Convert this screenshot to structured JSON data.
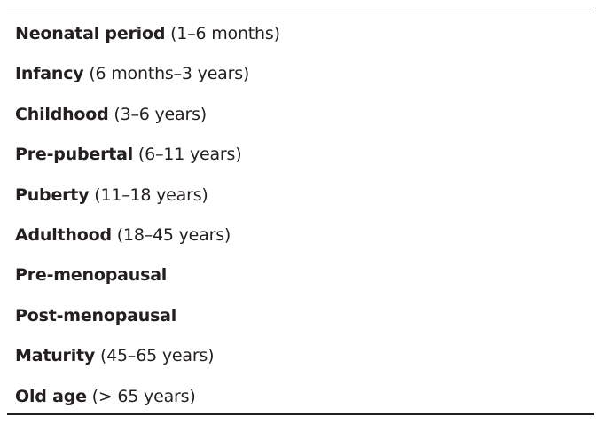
{
  "table": {
    "rows": [
      {
        "term": "Neonatal period",
        "range": "(1–6 months)"
      },
      {
        "term": "Infancy",
        "range": "(6 months–3 years)"
      },
      {
        "term": "Childhood",
        "range": "(3–6 years)"
      },
      {
        "term": "Pre-pubertal",
        "range": "(6–11 years)"
      },
      {
        "term": "Puberty",
        "range": "(11–18 years)"
      },
      {
        "term": "Adulthood",
        "range": "(18–45 years)"
      },
      {
        "term": "Pre-menopausal"
      },
      {
        "term": "Post-menopausal"
      },
      {
        "term": "Maturity",
        "range": "(45–65 years)"
      },
      {
        "term": "Old age",
        "range": "(> 65 years)"
      }
    ]
  }
}
